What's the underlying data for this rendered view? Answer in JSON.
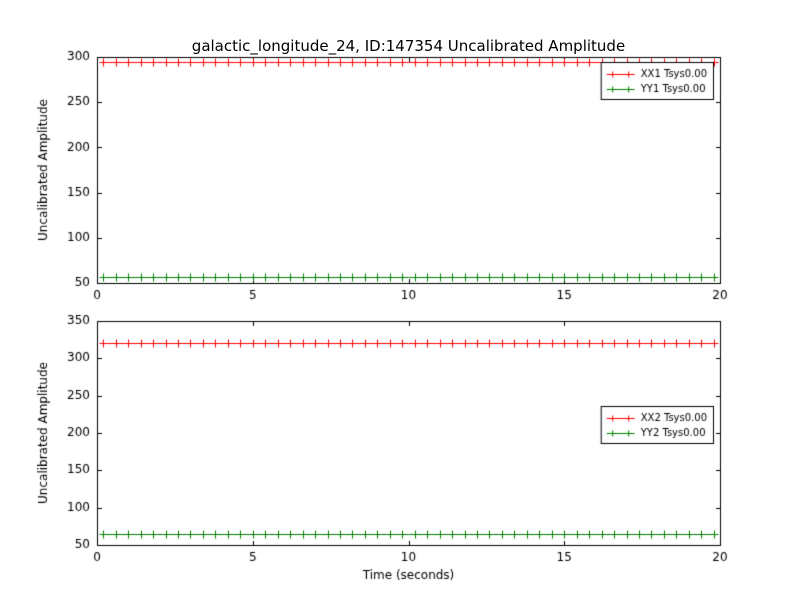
{
  "figure": {
    "title": "galactic_longitude_24, ID:147354 Uncalibrated Amplitude",
    "background": "#ffffff"
  },
  "chart_data": [
    {
      "type": "line",
      "title": "galactic_longitude_24, ID:147354 Uncalibrated Amplitude",
      "xlabel": "",
      "ylabel": "Uncalibrated Amplitude",
      "xlim": [
        0,
        20
      ],
      "ylim": [
        50,
        300
      ],
      "xticks": [
        0,
        5,
        10,
        15,
        20
      ],
      "yticks": [
        50,
        100,
        150,
        200,
        250,
        300
      ],
      "grid": false,
      "legend_loc": "upper-right",
      "series": [
        {
          "name": "XX1 Tsys0.00",
          "color": "#ff0000",
          "marker": "+",
          "x_range": [
            0.2,
            20.0,
            0.4
          ],
          "y_value": 295
        },
        {
          "name": "YY1 Tsys0.00",
          "color": "#008000",
          "marker": "+",
          "x_range": [
            0.2,
            20.0,
            0.4
          ],
          "y_value": 57
        }
      ]
    },
    {
      "type": "line",
      "title": "",
      "xlabel": "Time (seconds)",
      "ylabel": "Uncalibrated Amplitude",
      "xlim": [
        0,
        20
      ],
      "ylim": [
        50,
        350
      ],
      "xticks": [
        0,
        5,
        10,
        15,
        20
      ],
      "yticks": [
        50,
        100,
        150,
        200,
        250,
        300,
        350
      ],
      "grid": false,
      "legend_loc": "center-right",
      "series": [
        {
          "name": "XX2 Tsys0.00",
          "color": "#ff0000",
          "marker": "+",
          "x_range": [
            0.2,
            20.0,
            0.4
          ],
          "y_value": 320
        },
        {
          "name": "YY2 Tsys0.00",
          "color": "#008000",
          "marker": "+",
          "x_range": [
            0.2,
            20.0,
            0.4
          ],
          "y_value": 65
        }
      ]
    }
  ]
}
